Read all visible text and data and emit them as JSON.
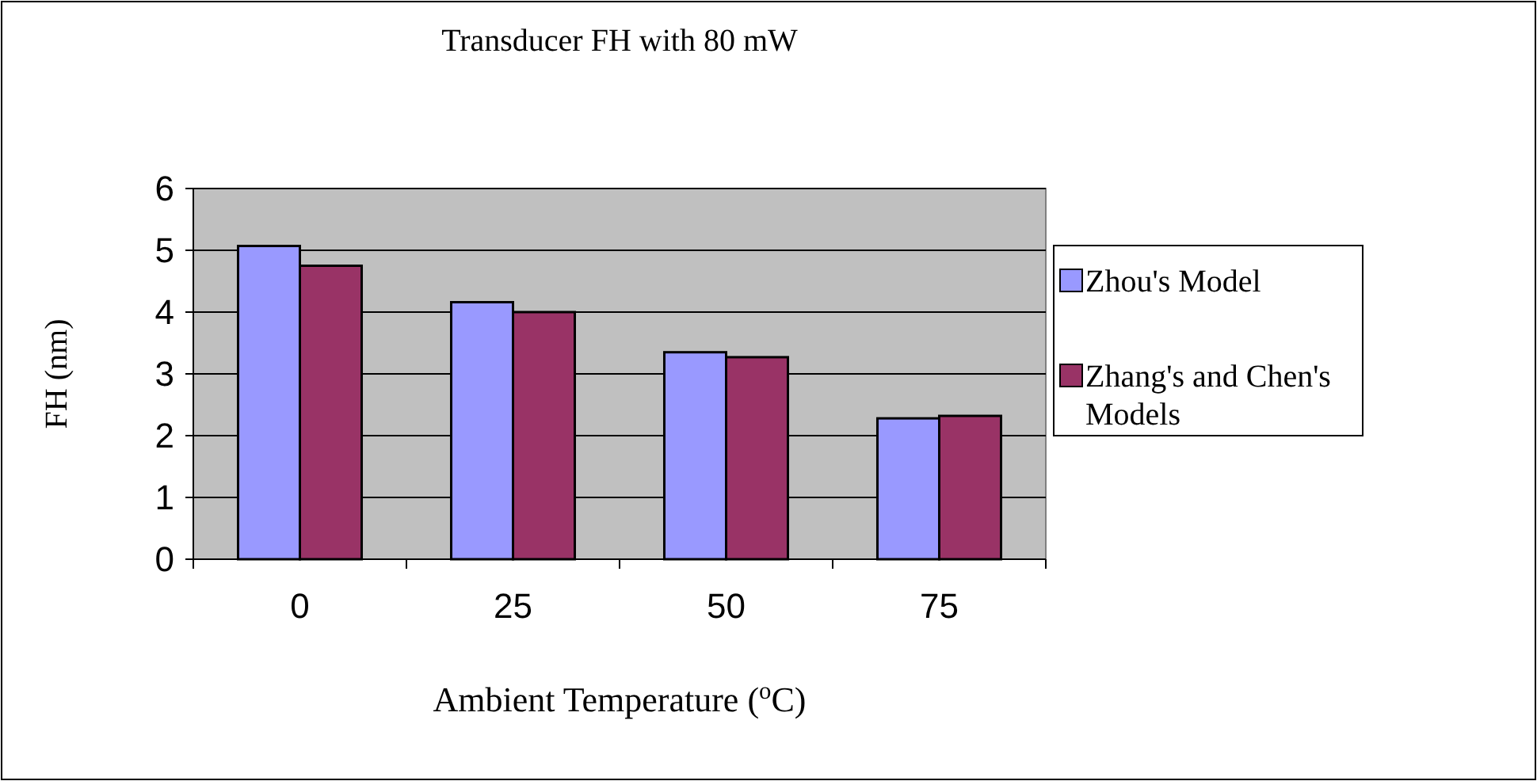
{
  "chart_data": {
    "type": "bar",
    "title": "Transducer FH with 80 mW",
    "xlabel": "Ambient Temperature ($^{o}$C)",
    "ylabel": "FH (nm)",
    "categories": [
      "0",
      "25",
      "50",
      "75"
    ],
    "series": [
      {
        "name": "Zhou's Model",
        "color": "#9999ff",
        "values": [
          5.07,
          4.16,
          3.35,
          2.28
        ]
      },
      {
        "name": "Zhang's and Chen's Models",
        "color": "#993366",
        "values": [
          4.75,
          4.0,
          3.27,
          2.32
        ]
      }
    ],
    "ylim": [
      0,
      6
    ],
    "yticks": [
      0,
      1,
      2,
      3,
      4,
      5,
      6
    ],
    "grid": "y",
    "legend": "right"
  }
}
